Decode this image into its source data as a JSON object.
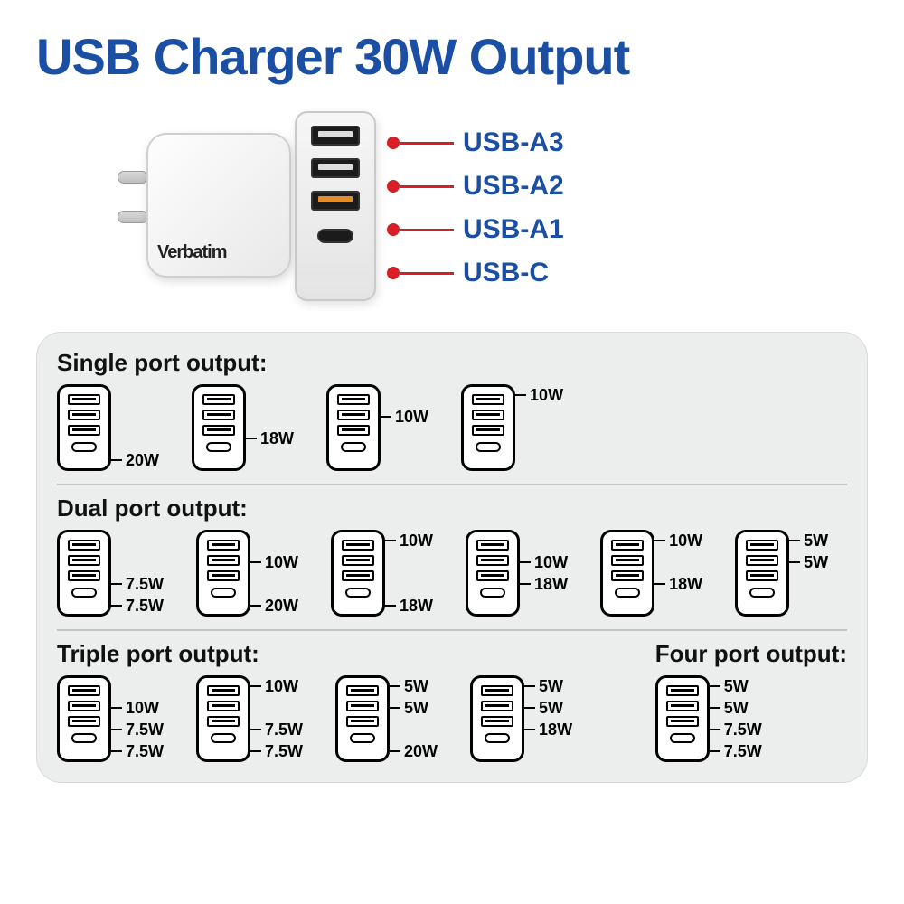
{
  "colors": {
    "title": "#1a4fa3",
    "callout_line": "#d61f26",
    "panel_bg": "#eceded",
    "divider": "#c4c4c4"
  },
  "title": "USB Charger 30W Output",
  "brand": "Verbatim",
  "callouts": [
    {
      "label": "USB-A3"
    },
    {
      "label": "USB-A2"
    },
    {
      "label": "USB-A1"
    },
    {
      "label": "USB-C"
    }
  ],
  "sections": {
    "single": {
      "title": "Single port output:",
      "combos": [
        {
          "ports": [
            null,
            null,
            null,
            "20W"
          ]
        },
        {
          "ports": [
            null,
            null,
            "18W",
            null
          ]
        },
        {
          "ports": [
            null,
            "10W",
            null,
            null
          ]
        },
        {
          "ports": [
            "10W",
            null,
            null,
            null
          ]
        }
      ]
    },
    "dual": {
      "title": "Dual port output:",
      "combos": [
        {
          "ports": [
            null,
            null,
            "7.5W",
            "7.5W"
          ]
        },
        {
          "ports": [
            null,
            "10W",
            null,
            "20W"
          ]
        },
        {
          "ports": [
            "10W",
            null,
            null,
            "18W"
          ]
        },
        {
          "ports": [
            null,
            "10W",
            "18W",
            null
          ]
        },
        {
          "ports": [
            "10W",
            null,
            "18W",
            null
          ]
        },
        {
          "ports": [
            "5W",
            "5W",
            null,
            null
          ]
        }
      ]
    },
    "triple": {
      "title": "Triple port output:",
      "combos": [
        {
          "ports": [
            null,
            "10W",
            "7.5W",
            "7.5W"
          ]
        },
        {
          "ports": [
            "10W",
            null,
            "7.5W",
            "7.5W"
          ]
        },
        {
          "ports": [
            "5W",
            "5W",
            null,
            "20W"
          ]
        },
        {
          "ports": [
            "5W",
            "5W",
            "18W",
            null
          ]
        }
      ]
    },
    "four": {
      "title": "Four port output:",
      "combos": [
        {
          "ports": [
            "5W",
            "5W",
            "7.5W",
            "7.5W"
          ]
        }
      ]
    }
  }
}
